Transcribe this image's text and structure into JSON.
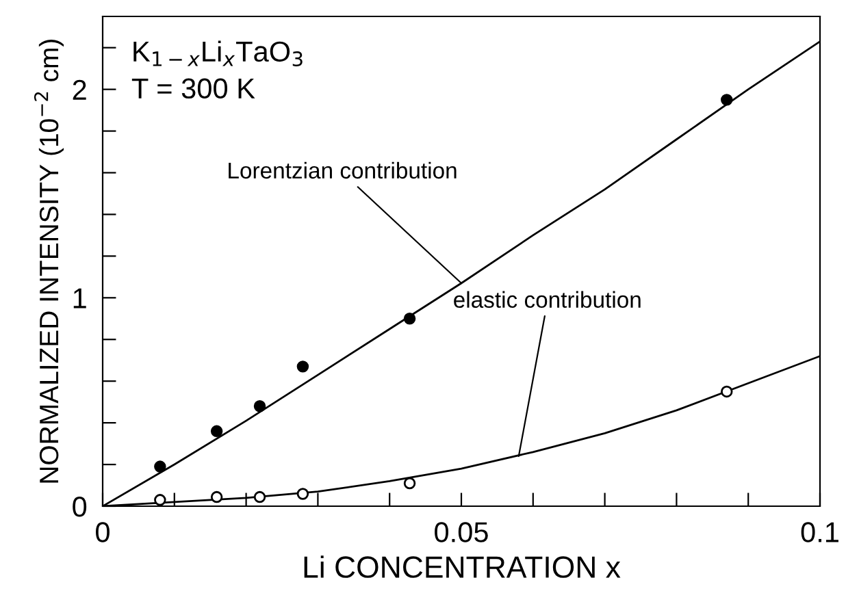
{
  "chart_data": {
    "type": "scatter",
    "xlabel": "Li CONCENTRATION x",
    "ylabel": "NORMALIZED INTENSITY (10$^{−2}$ cm)",
    "xlim": [
      0,
      0.1
    ],
    "ylim": [
      0,
      2.35
    ],
    "xticks": [
      0,
      {
        "value": 0.01,
        "label": null
      },
      {
        "value": 0.02,
        "label": null
      },
      {
        "value": 0.03,
        "label": null
      },
      {
        "value": 0.04,
        "label": null
      },
      0.05,
      {
        "value": 0.06,
        "label": null
      },
      {
        "value": 0.07,
        "label": null
      },
      {
        "value": 0.08,
        "label": null
      },
      {
        "value": 0.09,
        "label": null
      },
      0.1
    ],
    "yticks": [
      0,
      {
        "value": 0.2,
        "label": null
      },
      {
        "value": 0.4,
        "label": null
      },
      {
        "value": 0.6,
        "label": null
      },
      {
        "value": 0.8,
        "label": null
      },
      1,
      {
        "value": 1.2,
        "label": null
      },
      {
        "value": 1.4,
        "label": null
      },
      {
        "value": 1.6,
        "label": null
      },
      {
        "value": 1.8,
        "label": null
      },
      2,
      {
        "value": 2.2,
        "label": null
      }
    ],
    "grid": false,
    "series": [
      {
        "marker": "circle",
        "color": "#000000",
        "x": [
          0.008,
          0.0159,
          0.0219,
          0.0279,
          0.0428,
          0.087
        ],
        "values": [
          0.19,
          0.36,
          0.48,
          0.67,
          0.9,
          1.95
        ]
      },
      {
        "marker": "circle",
        "color": "#000000",
        "x": [
          0.008,
          0.0159,
          0.0219,
          0.0279,
          0.0428,
          0.087
        ],
        "values": [
          0.03,
          0.044,
          0.044,
          0.059,
          0.11,
          0.55
        ]
      },
      {
        "type": "line",
        "marker": "none",
        "color": "#000000",
        "x": [
          0,
          0.01,
          0.02,
          0.03,
          0.04,
          0.05,
          0.06,
          0.07,
          0.08,
          0.09,
          0.1
        ],
        "values": [
          0,
          0.2,
          0.41,
          0.63,
          0.85,
          1.07,
          1.3,
          1.52,
          1.76,
          2.0,
          2.23
        ]
      },
      {
        "type": "line",
        "marker": "none",
        "color": "#000000",
        "x": [
          0,
          0.01,
          0.02,
          0.03,
          0.04,
          0.05,
          0.06,
          0.07,
          0.08,
          0.09,
          0.1
        ],
        "values": [
          0,
          0.02,
          0.04,
          0.07,
          0.12,
          0.18,
          0.26,
          0.35,
          0.46,
          0.59,
          0.72
        ]
      }
    ],
    "annotations": [
      {
        "text": "K$_{1−x}$Li$_{x}$TaO$_{3}$"
      },
      {
        "text": "T = 300 K"
      },
      {
        "text": "Lorentzian contribution",
        "x": 0.05,
        "y": 1.07
      },
      {
        "text": "elastic contribution",
        "x": 0.058,
        "y": 0.24
      }
    ]
  }
}
